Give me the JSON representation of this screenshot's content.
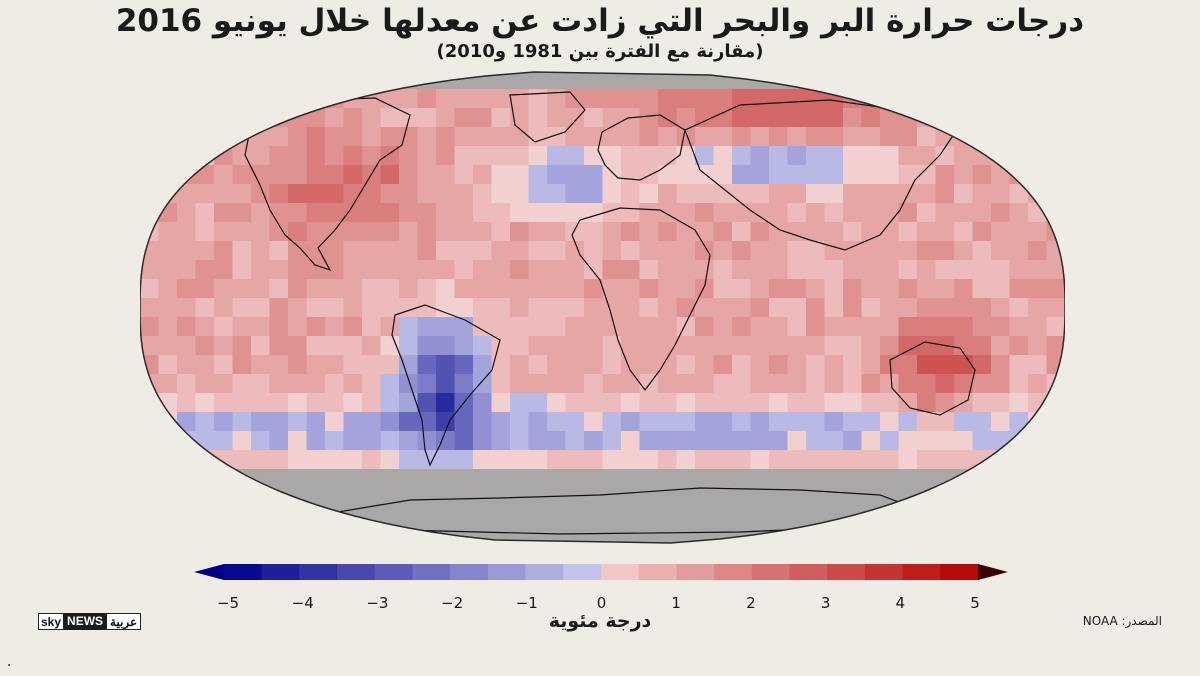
{
  "header": {
    "title": "درجات حرارة البر والبحر التي زادت عن معدلها خلال يونيو 2016",
    "subtitle": "(مقارنة مع الفترة بين 1981 و2010)"
  },
  "map": {
    "projection": "robinson",
    "no_data_color": "#a9a8a6",
    "coastline_color": "#111111",
    "anomaly_regions": [
      {
        "name": "eastern-north-america",
        "anomaly": 2.5
      },
      {
        "name": "northern-russia",
        "anomaly": 3.0
      },
      {
        "name": "central-asia",
        "anomaly": -1.5
      },
      {
        "name": "southern-south-america",
        "anomaly": -3.0
      },
      {
        "name": "eastern-australia",
        "anomaly": 3.0
      },
      {
        "name": "southern-ocean",
        "anomaly": -1.0
      },
      {
        "name": "north-atlantic",
        "anomaly": -1.0
      },
      {
        "name": "global-background",
        "anomaly": 1.0
      }
    ]
  },
  "color_scale": {
    "min": -5,
    "max": 5,
    "step": 0.5,
    "cold_color": "#00008b",
    "neutral_color": "#f3d0d0",
    "warm_color": "#b40000",
    "ticks": [
      "−5",
      "−4",
      "−3",
      "−2",
      "−1",
      "0",
      "1",
      "2",
      "3",
      "4",
      "5"
    ],
    "unit_label": "درجة مئوية"
  },
  "footer": {
    "logo": {
      "sky": "sky",
      "news": "NEWS",
      "arabic": "عربية"
    },
    "source": "المصدر: NOAA"
  }
}
